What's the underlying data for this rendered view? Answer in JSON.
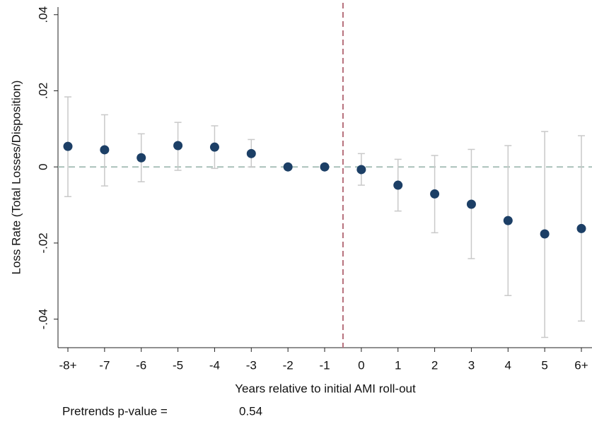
{
  "chart_data": {
    "type": "errorbar",
    "y_label": "Loss Rate (Total Losses/Disposition)",
    "x_label": "Years relative to initial AMI roll-out",
    "categories": [
      "-8+",
      "-7",
      "-6",
      "-5",
      "-4",
      "-3",
      "-2",
      "-1",
      "0",
      "1",
      "2",
      "3",
      "4",
      "5",
      "6+"
    ],
    "values": [
      0.0054,
      0.0045,
      0.0024,
      0.0056,
      0.0052,
      0.0035,
      0,
      0,
      -0.0007,
      -0.0048,
      -0.0071,
      -0.0098,
      -0.0141,
      -0.0176,
      -0.0162
    ],
    "ci_high": [
      0.0184,
      0.0137,
      0.0087,
      0.0117,
      0.0108,
      0.0072,
      null,
      null,
      0.0035,
      0.002,
      0.003,
      0.0046,
      0.0056,
      0.0093,
      0.0082
    ],
    "ci_low": [
      -0.0078,
      -0.005,
      -0.0039,
      -0.0009,
      -0.0004,
      0,
      null,
      null,
      -0.0048,
      -0.0116,
      -0.0173,
      -0.0241,
      -0.0338,
      -0.0448,
      -0.0405
    ],
    "color": "#1c3f66",
    "errorbar_color": "#c9c9c9",
    "hline": 0,
    "hline_color": "#a9c0b9",
    "vline_color": "#b66f7b",
    "ylim": [
      -0.0475,
      0.042
    ],
    "yticks": [
      {
        "value": -0.04,
        "label": "-.04"
      },
      {
        "value": -0.02,
        "label": "-.02"
      },
      0,
      {
        "value": 0.02,
        "label": ".02"
      },
      {
        "value": 0.04,
        "label": ".04"
      }
    ],
    "note_label": "Pretrends p-value =",
    "pretrends_p": 0.54
  }
}
